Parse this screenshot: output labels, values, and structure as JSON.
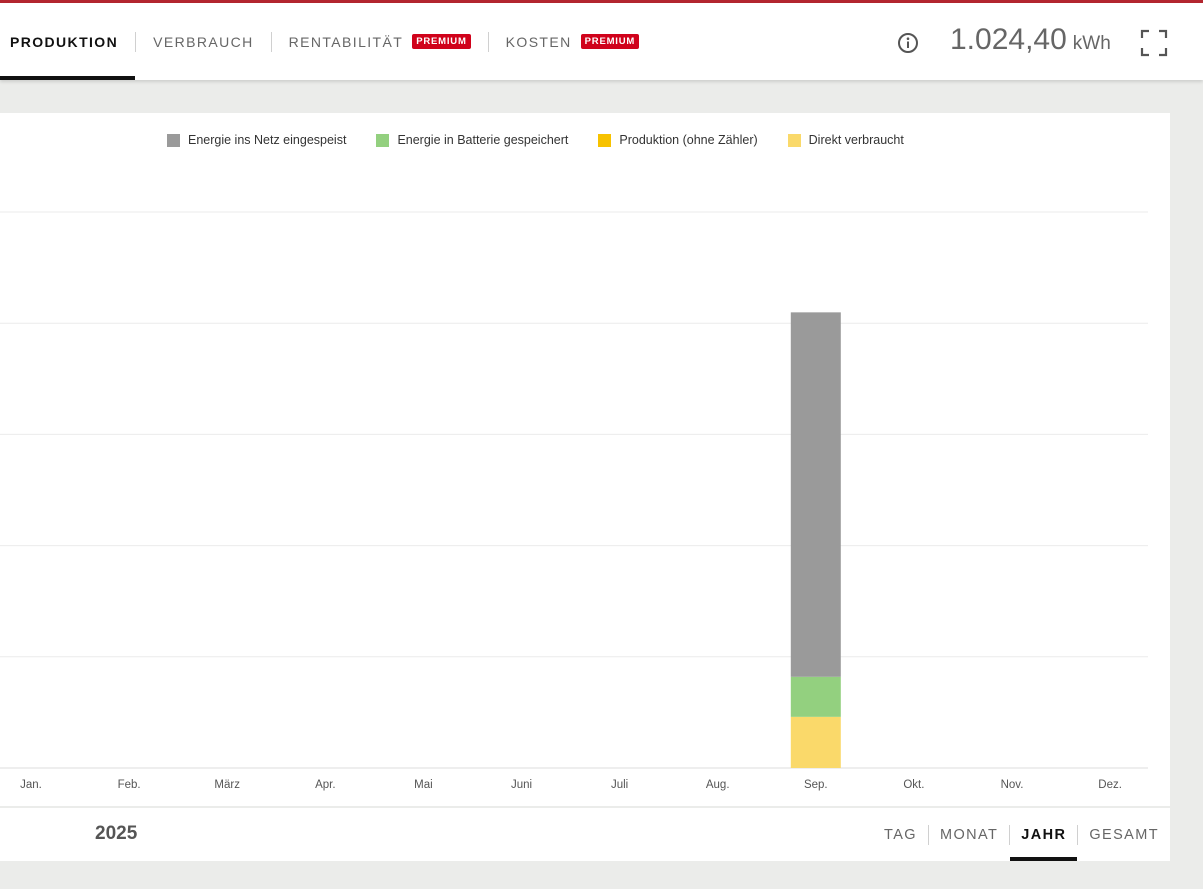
{
  "header": {
    "tabs": [
      {
        "label": "PRODUKTION",
        "active": true
      },
      {
        "label": "VERBRAUCH"
      },
      {
        "label": "RENTABILITÄT",
        "badge": "PREMIUM"
      },
      {
        "label": "KOSTEN",
        "badge": "PREMIUM"
      }
    ],
    "total_value": "1.024,40",
    "total_unit": "kWh",
    "info_icon": "info-icon",
    "fullscreen_icon": "fullscreen-icon"
  },
  "colors": {
    "accent": "#b3262f",
    "badge": "#d0021b",
    "grid": "#ebebeb"
  },
  "chart_data": {
    "type": "bar",
    "stacked": true,
    "categories": [
      "Jan.",
      "Feb.",
      "März",
      "Apr.",
      "Mai",
      "Juni",
      "Juli",
      "Aug.",
      "Sep.",
      "Okt.",
      "Nov.",
      "Dez."
    ],
    "series": [
      {
        "name": "Direkt verbraucht",
        "color": "#fad96a",
        "values": [
          0,
          0,
          0,
          0,
          0,
          0,
          0,
          0,
          115,
          0,
          0,
          0
        ]
      },
      {
        "name": "Produktion (ohne Zähler)",
        "color": "#f7c200",
        "values": [
          0,
          0,
          0,
          0,
          0,
          0,
          0,
          0,
          0,
          0,
          0,
          0
        ]
      },
      {
        "name": "Energie in Batterie gespeichert",
        "color": "#93d07f",
        "values": [
          0,
          0,
          0,
          0,
          0,
          0,
          0,
          0,
          90,
          0,
          0,
          0
        ]
      },
      {
        "name": "Energie ins Netz eingespeist",
        "color": "#9a9a9a",
        "values": [
          0,
          0,
          0,
          0,
          0,
          0,
          0,
          0,
          819.4,
          0,
          0,
          0
        ]
      }
    ],
    "legend_order": [
      "Energie ins Netz eingespeist",
      "Energie in Batterie gespeichert",
      "Produktion (ohne Zähler)",
      "Direkt verbraucht"
    ],
    "ylim": [
      0,
      1250
    ],
    "grid": true,
    "legend_position": "top"
  },
  "footer": {
    "year": "2025",
    "periods": [
      {
        "label": "TAG"
      },
      {
        "label": "MONAT"
      },
      {
        "label": "JAHR",
        "active": true
      },
      {
        "label": "GESAMT"
      }
    ]
  }
}
